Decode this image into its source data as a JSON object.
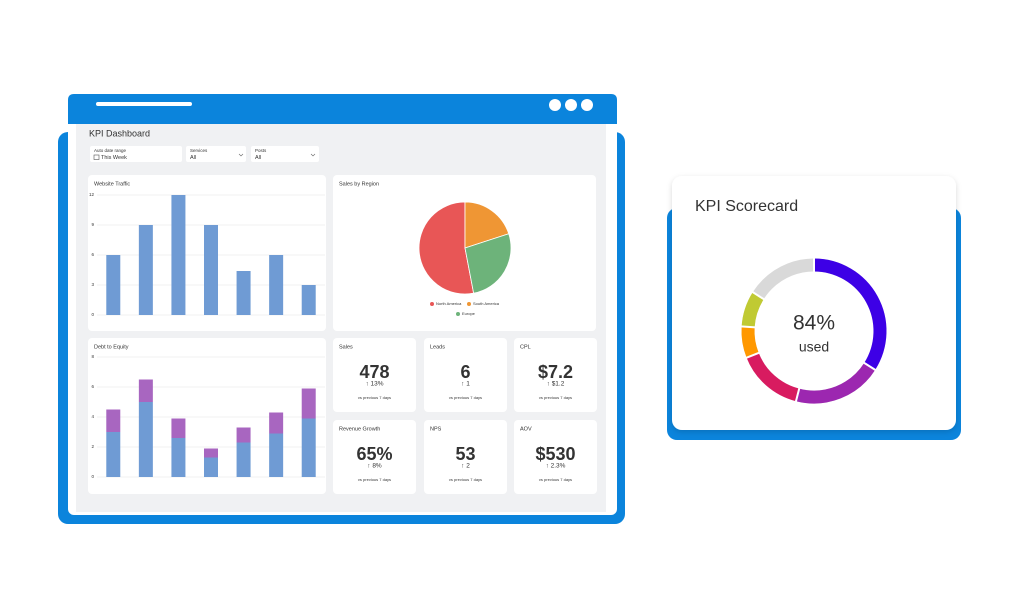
{
  "dashboard": {
    "title": "KPI Dashboard",
    "filters": [
      {
        "label": "Auto date range",
        "value": "This Week"
      },
      {
        "label": "Services",
        "value": "All"
      },
      {
        "label": "Posts",
        "value": "All"
      }
    ],
    "website_traffic": {
      "type": "bar",
      "title": "Website Traffic",
      "values": [
        6,
        9,
        12,
        9,
        4.4,
        6,
        3
      ],
      "color": "#6f9bd4",
      "ylim": [
        0,
        12
      ],
      "yticks": [
        0,
        3,
        6,
        9,
        12
      ],
      "grid": true
    },
    "sales_by_region": {
      "type": "pie",
      "title": "Sales by Region",
      "categories": [
        "North America",
        "South America",
        "Europe"
      ],
      "values": [
        53,
        20,
        27
      ],
      "colors": [
        "#e85656",
        "#ef9634",
        "#6db37a"
      ]
    },
    "debt_to_equity": {
      "type": "stacked_bar",
      "title": "Debt to Equity",
      "series": [
        {
          "color": "#6f9bd4",
          "values": [
            3,
            5,
            2.6,
            1.3,
            2.3,
            2.9,
            3.9
          ]
        },
        {
          "color": "#a866c0",
          "values": [
            1.5,
            1.5,
            1.3,
            0.6,
            1,
            1.4,
            2
          ]
        }
      ],
      "ylim": [
        0,
        8
      ],
      "yticks": [
        0,
        2,
        4,
        6,
        8
      ],
      "grid": true
    },
    "kpis": [
      {
        "title": "Sales",
        "value": "478",
        "change": "↑ 13%",
        "change_color": "#3aa655",
        "note": "vs previous 7 days"
      },
      {
        "title": "Leads",
        "value": "6",
        "change": "↑ 1",
        "change_color": "#3aa655",
        "note": "vs previous 7 days"
      },
      {
        "title": "CPL",
        "value": "$7.2",
        "change": "↑ $1.2",
        "change_color": "#3aa655",
        "note": "vs previous 7 days"
      },
      {
        "title": "Revenue Growth",
        "value": "65%",
        "change": "↑ 8%",
        "change_color": "#e53935",
        "note": "vs previous 7 days"
      },
      {
        "title": "NPS",
        "value": "53",
        "change": "↑ 2",
        "change_color": "#3aa655",
        "note": "vs previous 7 days"
      },
      {
        "title": "AOV",
        "value": "$530",
        "change": "↑ 2.3%",
        "change_color": "#3aa655",
        "note": "vs previous 7 days"
      }
    ]
  },
  "scorecard": {
    "title": "KPI Scorecard",
    "value": "84%",
    "caption": "used",
    "segments": [
      {
        "color": "#3d00e6",
        "value": 34
      },
      {
        "color": "#9c27b0",
        "value": 20
      },
      {
        "color": "#d81b60",
        "value": 15
      },
      {
        "color": "#ff9800",
        "value": 7
      },
      {
        "color": "#c0ca33",
        "value": 8
      }
    ],
    "track_color": "#d9d9d9"
  }
}
